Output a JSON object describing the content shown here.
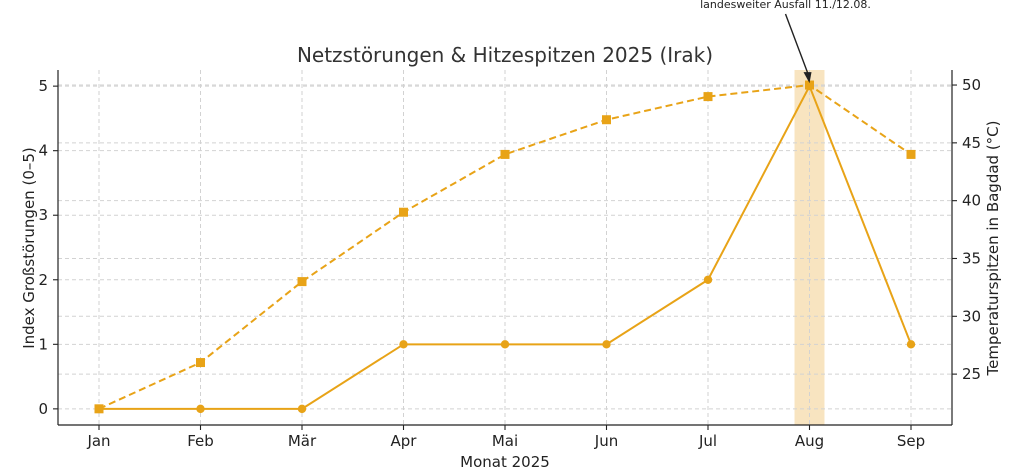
{
  "chart_data": {
    "type": "line",
    "title": "Netzstörungen & Hitzespitzen 2025 (Irak)",
    "xlabel": "Monat 2025",
    "ylabel": "Index Großstörungen (0–5)",
    "y2label": "Temperaturspitzen in Bagdad (°C)",
    "categories": [
      "Jan",
      "Feb",
      "Mär",
      "Apr",
      "Mai",
      "Jun",
      "Jul",
      "Aug",
      "Sep"
    ],
    "ylim": [
      -0.25,
      5.25
    ],
    "y2lim": [
      20.6,
      51.3
    ],
    "yticks": [
      0,
      1,
      2,
      3,
      4,
      5
    ],
    "y2ticks": [
      25,
      30,
      35,
      40,
      45,
      50
    ],
    "grid": true,
    "color": "#E8A317",
    "highlight_band": {
      "category": "Aug",
      "color": "#F8E4C0"
    },
    "series": [
      {
        "name": "Index Großstörungen",
        "axis": "left",
        "style": "solid",
        "marker": "circle",
        "values": [
          0,
          0,
          0,
          1,
          1,
          1,
          2,
          5,
          1
        ]
      },
      {
        "name": "Temperaturspitzen Bagdad",
        "axis": "right",
        "style": "dashed",
        "marker": "square",
        "values": [
          22,
          26,
          33,
          39,
          44,
          47,
          49,
          50,
          44
        ]
      }
    ],
    "annotation": {
      "text": "landesweiter Ausfall 11./12.08.",
      "category": "Aug",
      "series": 0
    }
  }
}
